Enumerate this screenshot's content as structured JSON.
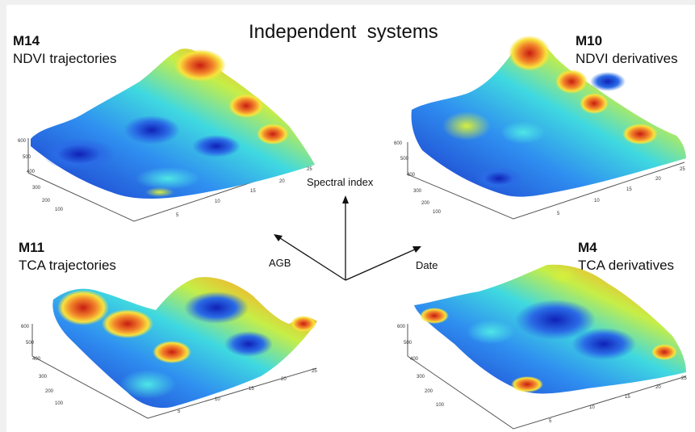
{
  "title": "Independent  systems",
  "panels": [
    {
      "code": "M14",
      "name": "NDVI trajectories"
    },
    {
      "code": "M10",
      "name": "NDVI derivatives"
    },
    {
      "code": "M11",
      "name": "TCA trajectories"
    },
    {
      "code": "M4",
      "name": "TCA derivatives"
    }
  ],
  "axes_glyph": {
    "up": "Spectral index",
    "left": "AGB",
    "right": "Date"
  },
  "tick_labels": {
    "depth": [
      "100",
      "200",
      "300",
      "400",
      "500",
      "600"
    ],
    "width": [
      "5",
      "10",
      "15",
      "20",
      "25"
    ]
  },
  "colors": {
    "low": "#1f3bd6",
    "mid": "#3fd0e6",
    "high_mid": "#f4e23a",
    "high": "#e0301e"
  }
}
